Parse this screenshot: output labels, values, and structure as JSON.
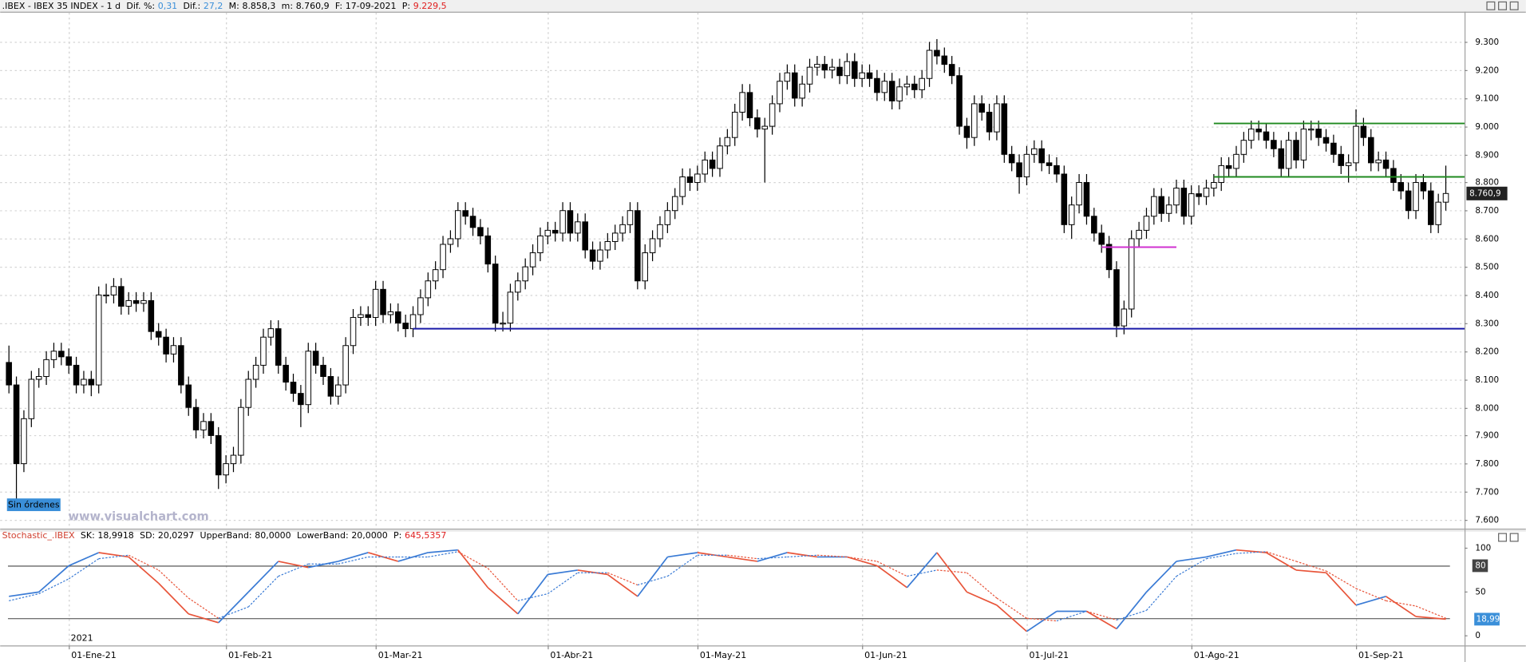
{
  "header": {
    "symbol": ".IBEX - IBEX 35 INDEX - 1 d",
    "fields": [
      {
        "label": "Dif. %:",
        "value": "0,31",
        "color": "#3b8fd9"
      },
      {
        "label": "Dif.:",
        "value": "27,2",
        "color": "#3b8fd9"
      },
      {
        "label": "M:",
        "value": "8.858,3",
        "color": "#000000"
      },
      {
        "label": "m:",
        "value": "8.760,9",
        "color": "#000000"
      },
      {
        "label": "F:",
        "value": "17-09-2021",
        "color": "#000000"
      },
      {
        "label": "P:",
        "value": "9.229,5",
        "color": "#e02020"
      }
    ]
  },
  "watermark": "www.visualchart.com",
  "order_button": "Sin órdenes",
  "chart_data": [
    {
      "type": "candlestick",
      "xlim": [
        -1.17,
        194.5
      ],
      "ylim": [
        7569,
        9404
      ],
      "xticks": [
        {
          "value": 8,
          "label": "01-Ene-21"
        },
        {
          "value": 29,
          "label": "01-Feb-21"
        },
        {
          "value": 49,
          "label": "01-Mar-21"
        },
        {
          "value": 72,
          "label": "01-Abr-21"
        },
        {
          "value": 92,
          "label": "01-May-21"
        },
        {
          "value": 114,
          "label": "01-Jun-21"
        },
        {
          "value": 136,
          "label": "01-Jul-21"
        },
        {
          "value": 158,
          "label": "01-Ago-21"
        },
        {
          "value": 180,
          "label": "01-Sep-21"
        }
      ],
      "year_label": "2021",
      "yticks": [
        {
          "value": 7600,
          "label": "7.600"
        },
        {
          "value": 7700,
          "label": "7.700"
        },
        {
          "value": 7800,
          "label": "7.800"
        },
        {
          "value": 7900,
          "label": "7.900"
        },
        {
          "value": 8000,
          "label": "8.000"
        },
        {
          "value": 8100,
          "label": "8.100"
        },
        {
          "value": 8200,
          "label": "8.200"
        },
        {
          "value": 8300,
          "label": "8.300"
        },
        {
          "value": 8400,
          "label": "8.400"
        },
        {
          "value": 8500,
          "label": "8.500"
        },
        {
          "value": 8600,
          "label": "8.600"
        },
        {
          "value": 8700,
          "label": "8.700"
        },
        {
          "value": 8800,
          "label": "8.800"
        },
        {
          "value": 8900,
          "label": "8.900"
        },
        {
          "value": 9000,
          "label": "9.000"
        },
        {
          "value": 9100,
          "label": "9.100"
        },
        {
          "value": 9200,
          "label": "9.200"
        },
        {
          "value": 9300,
          "label": "9.300"
        }
      ],
      "grid": true,
      "up_color": "#ffffff",
      "down_color": "#000000",
      "open": [
        8160,
        8080,
        7800,
        7960,
        8100,
        8110,
        8170,
        8200,
        8180,
        8150,
        8080,
        8100,
        8080,
        8400,
        8400,
        8430,
        8360,
        8380,
        8370,
        8380,
        8270,
        8250,
        8190,
        8220,
        8080,
        8000,
        7920,
        7950,
        7900,
        7760,
        7800,
        7830,
        8000,
        8100,
        8150,
        8250,
        8280,
        8150,
        8090,
        8050,
        8010,
        8200,
        8150,
        8110,
        8040,
        8080,
        8220,
        8320,
        8330,
        8320,
        8420,
        8330,
        8340,
        8300,
        8280,
        8330,
        8390,
        8450,
        8490,
        8580,
        8600,
        8700,
        8680,
        8640,
        8610,
        8510,
        8300,
        8300,
        8410,
        8450,
        8500,
        8550,
        8610,
        8630,
        8620,
        8700,
        8620,
        8660,
        8560,
        8520,
        8560,
        8590,
        8620,
        8650,
        8700,
        8450,
        8550,
        8600,
        8650,
        8700,
        8750,
        8820,
        8800,
        8830,
        8880,
        8850,
        8930,
        8960,
        9050,
        9120,
        9030,
        8990,
        9000,
        9080,
        9160,
        9190,
        9100,
        9150,
        9210,
        9220,
        9200,
        9210,
        9180,
        9230,
        9170,
        9190,
        9170,
        9120,
        9160,
        9090,
        9140,
        9150,
        9130,
        9170,
        9270,
        9250,
        9220,
        9180,
        9000,
        8960,
        9080,
        9050,
        8980,
        9080,
        8900,
        8870,
        8820,
        8900,
        8920,
        8870,
        8860,
        8830,
        8650,
        8720,
        8800,
        8680,
        8620,
        8580,
        8490,
        8290,
        8350,
        8600,
        8630,
        8680,
        8750,
        8690,
        8720,
        8780,
        8680,
        8760,
        8750,
        8780,
        8800,
        8860,
        8850,
        8900,
        8950,
        8990,
        8980,
        8950,
        8920,
        8850,
        8950,
        8880,
        8990,
        8990,
        8960,
        8940,
        8900,
        8860,
        8870,
        9000,
        8960,
        8870,
        8880,
        8850,
        8800,
        8770,
        8700,
        8800,
        8770,
        8650,
        8730
      ],
      "high": [
        8220,
        8110,
        7990,
        8130,
        8140,
        8200,
        8230,
        8230,
        8210,
        8180,
        8130,
        8130,
        8430,
        8440,
        8460,
        8460,
        8410,
        8410,
        8410,
        8410,
        8300,
        8280,
        8250,
        8250,
        8110,
        8030,
        7980,
        7980,
        7930,
        7830,
        7860,
        8030,
        8130,
        8180,
        8280,
        8310,
        8310,
        8180,
        8120,
        8080,
        8230,
        8230,
        8180,
        8140,
        8110,
        8250,
        8350,
        8360,
        8360,
        8450,
        8450,
        8370,
        8370,
        8330,
        8360,
        8420,
        8480,
        8520,
        8610,
        8630,
        8730,
        8730,
        8710,
        8670,
        8640,
        8540,
        8340,
        8440,
        8480,
        8530,
        8580,
        8640,
        8660,
        8660,
        8730,
        8730,
        8690,
        8690,
        8590,
        8590,
        8620,
        8650,
        8680,
        8730,
        8730,
        8580,
        8630,
        8680,
        8730,
        8780,
        8850,
        8850,
        8860,
        8910,
        8910,
        8960,
        8990,
        9080,
        9150,
        9150,
        9060,
        9030,
        9110,
        9190,
        9220,
        9220,
        9180,
        9240,
        9250,
        9250,
        9240,
        9240,
        9260,
        9260,
        9220,
        9220,
        9200,
        9190,
        9190,
        9170,
        9180,
        9180,
        9200,
        9300,
        9310,
        9280,
        9250,
        9210,
        9030,
        9110,
        9110,
        9080,
        9110,
        9110,
        8930,
        8900,
        8930,
        8950,
        8950,
        8900,
        8890,
        8860,
        8750,
        8830,
        8830,
        8710,
        8650,
        8610,
        8520,
        8380,
        8630,
        8660,
        8710,
        8780,
        8780,
        8750,
        8810,
        8810,
        8790,
        8790,
        8810,
        8830,
        8890,
        8890,
        8930,
        8980,
        9020,
        9020,
        9010,
        8980,
        8950,
        8980,
        8980,
        9020,
        9020,
        9020,
        8990,
        8970,
        8930,
        8900,
        9060,
        9030,
        8990,
        8910,
        8910,
        8880,
        8830,
        8800,
        8830,
        8830,
        8800,
        8760,
        8860
      ],
      "low": [
        8050,
        7660,
        7770,
        7930,
        8070,
        8080,
        8140,
        8150,
        8120,
        8050,
        8050,
        8040,
        8050,
        8370,
        8370,
        8330,
        8330,
        8340,
        8340,
        8240,
        8220,
        8160,
        8160,
        8050,
        7970,
        7890,
        7890,
        7870,
        7710,
        7730,
        7770,
        7800,
        7970,
        8070,
        8120,
        8220,
        8120,
        8060,
        8020,
        7930,
        7980,
        8120,
        8080,
        8010,
        8010,
        8050,
        8190,
        8290,
        8290,
        8290,
        8300,
        8300,
        8270,
        8250,
        8250,
        8300,
        8360,
        8420,
        8460,
        8550,
        8570,
        8650,
        8610,
        8580,
        8480,
        8270,
        8270,
        8270,
        8380,
        8420,
        8470,
        8520,
        8580,
        8590,
        8590,
        8590,
        8590,
        8530,
        8490,
        8490,
        8530,
        8560,
        8590,
        8620,
        8420,
        8420,
        8520,
        8570,
        8620,
        8670,
        8720,
        8770,
        8770,
        8800,
        8820,
        8820,
        8900,
        8930,
        9020,
        9000,
        8960,
        8800,
        8970,
        9050,
        9130,
        9070,
        9070,
        9120,
        9180,
        9170,
        9170,
        9150,
        9150,
        9140,
        9140,
        9140,
        9090,
        9090,
        9060,
        9060,
        9110,
        9100,
        9100,
        9140,
        9220,
        9190,
        9150,
        8970,
        8920,
        8930,
        9020,
        8950,
        8950,
        8870,
        8840,
        8760,
        8790,
        8870,
        8840,
        8830,
        8800,
        8620,
        8600,
        8690,
        8650,
        8590,
        8550,
        8460,
        8250,
        8260,
        8320,
        8570,
        8600,
        8650,
        8660,
        8660,
        8690,
        8650,
        8650,
        8720,
        8720,
        8750,
        8770,
        8820,
        8820,
        8870,
        8920,
        8950,
        8920,
        8890,
        8820,
        8820,
        8850,
        8850,
        8950,
        8930,
        8910,
        8870,
        8830,
        8800,
        8840,
        8930,
        8840,
        8840,
        8820,
        8770,
        8740,
        8670,
        8670,
        8740,
        8620,
        8620,
        8700
      ],
      "close": [
        8080,
        7800,
        7960,
        8100,
        8110,
        8170,
        8200,
        8180,
        8150,
        8080,
        8100,
        8080,
        8400,
        8400,
        8430,
        8360,
        8380,
        8370,
        8380,
        8270,
        8250,
        8190,
        8220,
        8080,
        8000,
        7920,
        7950,
        7900,
        7760,
        7800,
        7830,
        8000,
        8100,
        8150,
        8250,
        8280,
        8150,
        8090,
        8050,
        8010,
        8200,
        8150,
        8110,
        8040,
        8080,
        8220,
        8320,
        8330,
        8320,
        8420,
        8330,
        8340,
        8300,
        8280,
        8330,
        8390,
        8450,
        8490,
        8580,
        8600,
        8700,
        8680,
        8640,
        8610,
        8510,
        8300,
        8300,
        8410,
        8450,
        8500,
        8550,
        8610,
        8630,
        8620,
        8700,
        8620,
        8660,
        8560,
        8520,
        8560,
        8590,
        8620,
        8650,
        8700,
        8450,
        8550,
        8600,
        8650,
        8700,
        8750,
        8820,
        8800,
        8830,
        8880,
        8850,
        8930,
        8960,
        9050,
        9120,
        9030,
        8990,
        9000,
        9080,
        9160,
        9190,
        9100,
        9150,
        9210,
        9220,
        9200,
        9210,
        9180,
        9230,
        9170,
        9190,
        9170,
        9120,
        9160,
        9090,
        9140,
        9150,
        9130,
        9170,
        9270,
        9250,
        9220,
        9180,
        9000,
        8960,
        9080,
        9050,
        8980,
        9080,
        8900,
        8870,
        8820,
        8900,
        8920,
        8870,
        8860,
        8830,
        8650,
        8720,
        8800,
        8680,
        8620,
        8580,
        8490,
        8290,
        8350,
        8600,
        8630,
        8680,
        8750,
        8690,
        8720,
        8780,
        8680,
        8760,
        8750,
        8780,
        8800,
        8860,
        8850,
        8900,
        8950,
        8990,
        8980,
        8950,
        8920,
        8850,
        8950,
        8880,
        8990,
        8990,
        8960,
        8940,
        8900,
        8860,
        8870,
        9000,
        8960,
        8870,
        8880,
        8850,
        8800,
        8770,
        8700,
        8800,
        8770,
        8650,
        8730,
        8760.9
      ],
      "last_label": "8.760,9",
      "lines": [
        {
          "value": 8280,
          "color": "#1a1aa8",
          "from": 54
        },
        {
          "value": 9010,
          "color": "#1f8a1f",
          "from": 161
        },
        {
          "value": 8820,
          "color": "#1f8a1f",
          "from": 161
        },
        {
          "value": 8570,
          "color": "#d030d0",
          "from": 146,
          "to": 156
        }
      ]
    },
    {
      "type": "line",
      "title": "Stochastic_.IBEX",
      "fields": [
        {
          "label": "SK:",
          "value": "18,9918",
          "color": "#000000"
        },
        {
          "label": "SD:",
          "value": "20,0297",
          "color": "#000000"
        },
        {
          "label": "UpperBand:",
          "value": "80,0000",
          "color": "#000000"
        },
        {
          "label": "LowerBand:",
          "value": "20,0000",
          "color": "#000000"
        },
        {
          "label": "P:",
          "value": "645,5357",
          "color": "#e02020"
        }
      ],
      "xlim": [
        -1.17,
        194.5
      ],
      "ylim": [
        -11,
        119
      ],
      "yticks": [
        0,
        50,
        100
      ],
      "bands": [
        80,
        20
      ],
      "up_color": "#3a7bd5",
      "down_color": "#e8553a",
      "x": [
        0,
        4,
        8,
        12,
        16,
        20,
        24,
        28,
        32,
        36,
        40,
        44,
        48,
        52,
        56,
        60,
        64,
        68,
        72,
        76,
        80,
        84,
        88,
        92,
        96,
        100,
        104,
        108,
        112,
        116,
        120,
        124,
        128,
        132,
        136,
        140,
        144,
        148,
        152,
        156,
        160,
        164,
        168,
        172,
        176,
        180,
        184,
        188,
        192
      ],
      "series": [
        {
          "values": [
            45,
            50,
            80,
            95,
            90,
            60,
            25,
            15,
            50,
            85,
            78,
            85,
            95,
            85,
            95,
            98,
            55,
            25,
            70,
            75,
            70,
            45,
            90,
            95,
            90,
            85,
            95,
            90,
            90,
            80,
            55,
            95,
            50,
            35,
            5,
            28,
            28,
            8,
            50,
            85,
            90,
            98,
            95,
            75,
            72,
            35,
            45,
            22,
            18.9918
          ],
          "dash": false
        },
        {
          "values": [
            40,
            48,
            65,
            88,
            92,
            75,
            43,
            20,
            33,
            68,
            82,
            82,
            90,
            90,
            90,
            96,
            77,
            40,
            48,
            72,
            72,
            58,
            68,
            92,
            92,
            88,
            90,
            92,
            90,
            85,
            68,
            75,
            72,
            43,
            20,
            17,
            28,
            18,
            29,
            68,
            88,
            94,
            96,
            85,
            74,
            54,
            40,
            34,
            20.0297
          ],
          "dash": true
        }
      ],
      "last_label": "18,99"
    }
  ]
}
